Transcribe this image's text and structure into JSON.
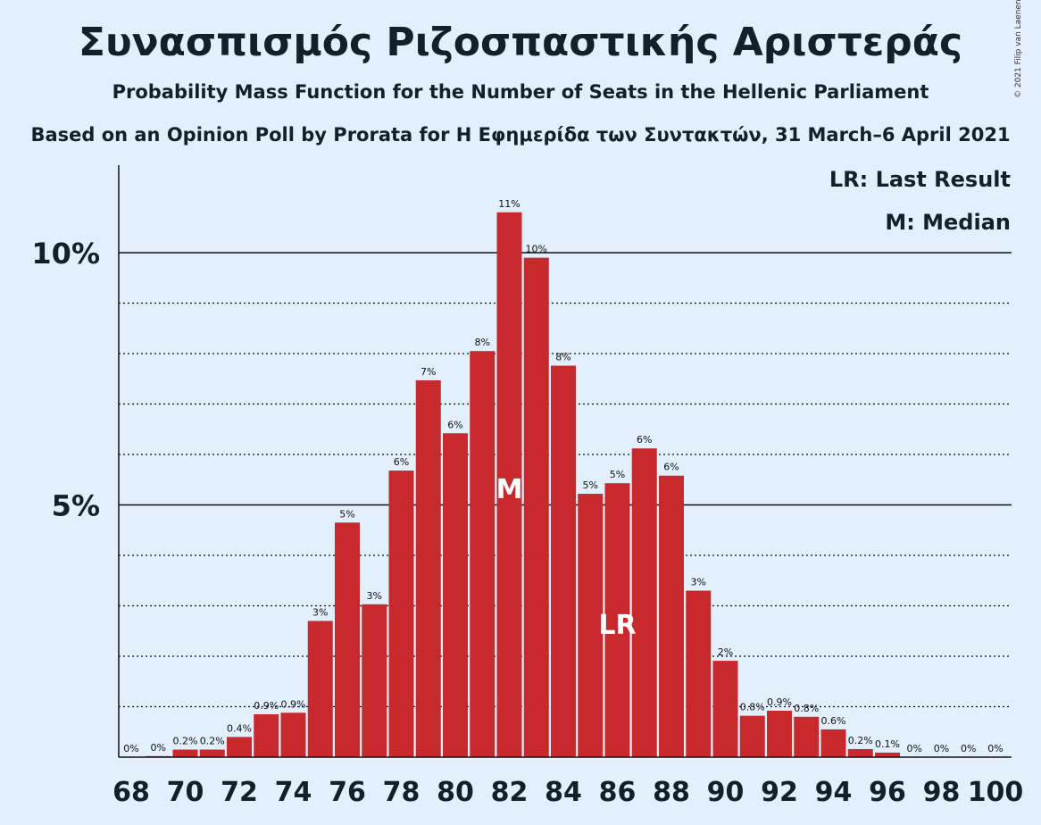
{
  "chart_data": {
    "type": "bar",
    "title": "Συνασπισμός Ριζοσπαστικής Αριστεράς",
    "subtitle": "Probability Mass Function for the Number of Seats in the Hellenic Parliament",
    "source": "Based on an Opinion Poll by Prorata for Η Εφημερίδα των Συντακτών, 31 March–6 April 2021",
    "copyright": "© 2021 Filip van Laenen",
    "x": [
      68,
      69,
      70,
      71,
      72,
      73,
      74,
      75,
      76,
      77,
      78,
      79,
      80,
      81,
      82,
      83,
      84,
      85,
      86,
      87,
      88,
      89,
      90,
      91,
      92,
      93,
      94,
      95,
      96,
      97,
      98,
      99,
      100
    ],
    "values": [
      0.0,
      0.02,
      0.15,
      0.15,
      0.4,
      0.85,
      0.88,
      2.7,
      4.65,
      3.03,
      5.68,
      7.47,
      6.42,
      8.05,
      10.8,
      9.9,
      7.76,
      5.22,
      5.43,
      6.12,
      5.58,
      3.3,
      1.91,
      0.82,
      0.92,
      0.8,
      0.55,
      0.16,
      0.09,
      0.0,
      0.0,
      0.0,
      0.0
    ],
    "value_labels": [
      "0%",
      "0%",
      "0.2%",
      "0.2%",
      "0.4%",
      "0.9%",
      "0.9%",
      "3%",
      "5%",
      "3%",
      "6%",
      "7%",
      "6%",
      "8%",
      "11%",
      "10%",
      "8%",
      "5%",
      "5%",
      "6%",
      "6%",
      "3%",
      "2%",
      "0.8%",
      "0.9%",
      "0.8%",
      "0.6%",
      "0.2%",
      "0.1%",
      "0%",
      "0%",
      "0%",
      "0%"
    ],
    "x_tick_labels": [
      "68",
      "70",
      "72",
      "74",
      "76",
      "78",
      "80",
      "82",
      "84",
      "86",
      "88",
      "90",
      "92",
      "94",
      "96",
      "98",
      "100"
    ],
    "y_tick_labels": [
      {
        "value": 5,
        "label": "5%"
      },
      {
        "value": 10,
        "label": "10%"
      }
    ],
    "ylim": [
      0,
      11.8
    ],
    "grid": "solid at 5% and 10%, dotted every 1%",
    "bar_color": "#c8292c",
    "median": {
      "x": 82,
      "label": "M"
    },
    "last_result": {
      "x": 86,
      "label": "LR"
    },
    "legend": {
      "placement": "top-right",
      "entries": [
        "LR: Last Result",
        "M: Median"
      ]
    }
  }
}
